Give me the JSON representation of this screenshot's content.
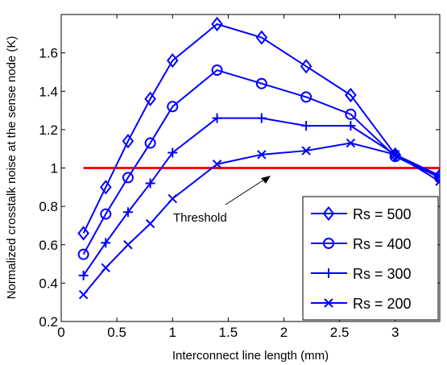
{
  "chart_data": {
    "type": "line",
    "xlabel": "Interconnect line length (mm)",
    "ylabel": "Normalized crosstalk noise at the sense node (K)",
    "xlim": [
      0,
      3.4
    ],
    "ylim": [
      0.2,
      1.8
    ],
    "xticks": [
      0,
      0.5,
      1,
      1.5,
      2,
      2.5,
      3
    ],
    "xtick_labels": [
      "0",
      "0.5",
      "1",
      "1.5",
      "2",
      "2.5",
      "3"
    ],
    "yticks": [
      0.2,
      0.4,
      0.6,
      0.8,
      1.0,
      1.2,
      1.4,
      1.6
    ],
    "ytick_labels": [
      "0.2",
      "0.4",
      "0.6",
      "0.8",
      "1",
      "1.2",
      "1.4",
      "1.6"
    ],
    "grid": false,
    "legend_position": "bottom-right",
    "x": [
      0.2,
      0.4,
      0.6,
      0.8,
      1.0,
      1.4,
      1.8,
      2.2,
      2.6,
      3.0,
      3.4
    ],
    "series": [
      {
        "name": "Rs = 500",
        "marker": "diamond",
        "values": [
          0.66,
          0.9,
          1.14,
          1.36,
          1.56,
          1.75,
          1.68,
          1.53,
          1.38,
          1.07,
          0.96
        ]
      },
      {
        "name": "Rs = 400",
        "marker": "circle",
        "values": [
          0.55,
          0.76,
          0.95,
          1.13,
          1.32,
          1.51,
          1.44,
          1.37,
          1.28,
          1.06,
          0.95
        ]
      },
      {
        "name": "Rs = 300",
        "marker": "plus",
        "values": [
          0.44,
          0.61,
          0.77,
          0.92,
          1.08,
          1.26,
          1.26,
          1.22,
          1.22,
          1.07,
          0.95
        ]
      },
      {
        "name": "Rs = 200",
        "marker": "cross",
        "values": [
          0.34,
          0.48,
          0.6,
          0.71,
          0.84,
          1.02,
          1.07,
          1.09,
          1.13,
          1.07,
          0.93
        ]
      }
    ],
    "threshold": {
      "value": 1.0,
      "label": "Threshold",
      "color": "#ff0000"
    },
    "series_color": "#0000ff"
  }
}
